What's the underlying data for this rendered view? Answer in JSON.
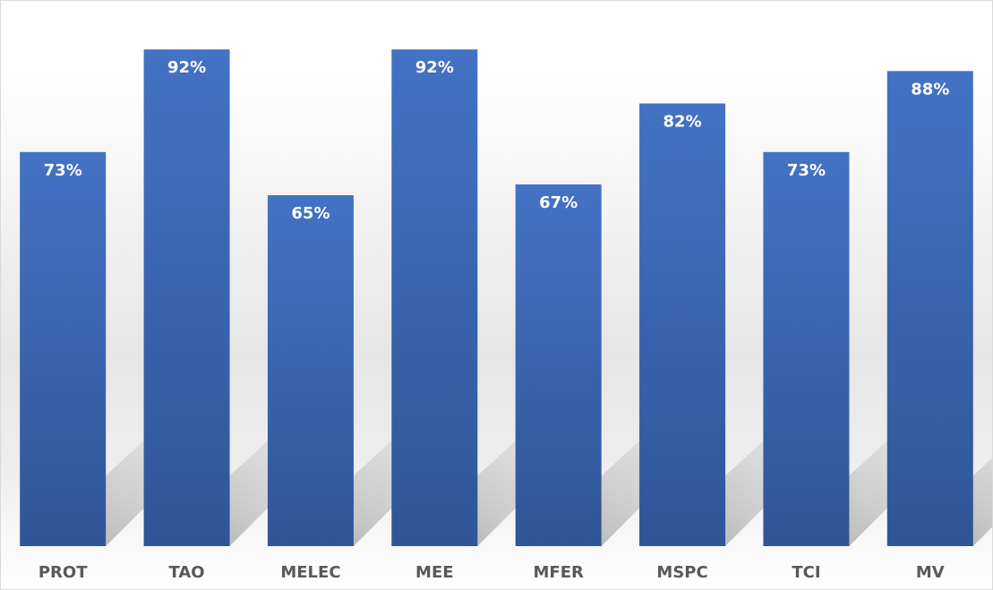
{
  "chart_data": {
    "type": "bar",
    "categories": [
      "PROT",
      "TAO",
      "MELEC",
      "MEE",
      "MFER",
      "MSPC",
      "TCI",
      "MV"
    ],
    "values": [
      73,
      92,
      65,
      92,
      67,
      82,
      73,
      88
    ],
    "value_labels": [
      "73%",
      "92%",
      "65%",
      "92%",
      "67%",
      "82%",
      "73%",
      "88%"
    ],
    "title": "",
    "xlabel": "",
    "ylabel": "",
    "ylim": [
      0,
      100
    ],
    "grid": false,
    "legend": "none",
    "colors": {
      "bar_top": "#4472C4",
      "bar_bottom": "#2F5597",
      "value_label": "#FFFFFF",
      "category_label": "#595959",
      "shadow": "#9A9A9A"
    }
  }
}
